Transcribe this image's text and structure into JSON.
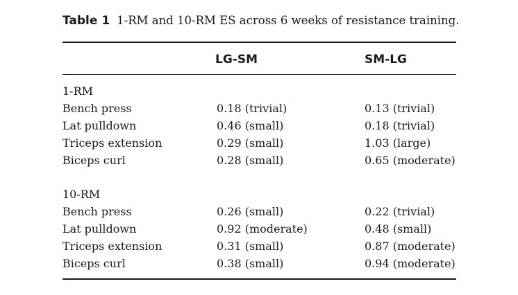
{
  "caption": {
    "label": "Table 1",
    "text": "1-RM and 10-RM ES across 6 weeks of resistance training."
  },
  "table": {
    "columns": [
      "LG-SM",
      "SM-LG"
    ],
    "sections": [
      {
        "title": "1-RM",
        "rows": [
          {
            "exercise": "Bench press",
            "lg_sm": "0.18 (trivial)",
            "sm_lg": "0.13 (trivial)"
          },
          {
            "exercise": "Lat pulldown",
            "lg_sm": "0.46 (small)",
            "sm_lg": "0.18 (trivial)"
          },
          {
            "exercise": "Triceps extension",
            "lg_sm": "0.29 (small)",
            "sm_lg": "1.03 (large)"
          },
          {
            "exercise": "Biceps curl",
            "lg_sm": "0.28 (small)",
            "sm_lg": "0.65 (moderate)"
          }
        ]
      },
      {
        "title": "10-RM",
        "rows": [
          {
            "exercise": "Bench press",
            "lg_sm": "0.26 (small)",
            "sm_lg": "0.22 (trivial)"
          },
          {
            "exercise": "Lat pulldown",
            "lg_sm": "0.92 (moderate)",
            "sm_lg": "0.48 (small)"
          },
          {
            "exercise": "Triceps extension",
            "lg_sm": "0.31 (small)",
            "sm_lg": "0.87 (moderate)"
          },
          {
            "exercise": "Biceps curl",
            "lg_sm": "0.38 (small)",
            "sm_lg": "0.94 (moderate)"
          }
        ]
      }
    ]
  }
}
